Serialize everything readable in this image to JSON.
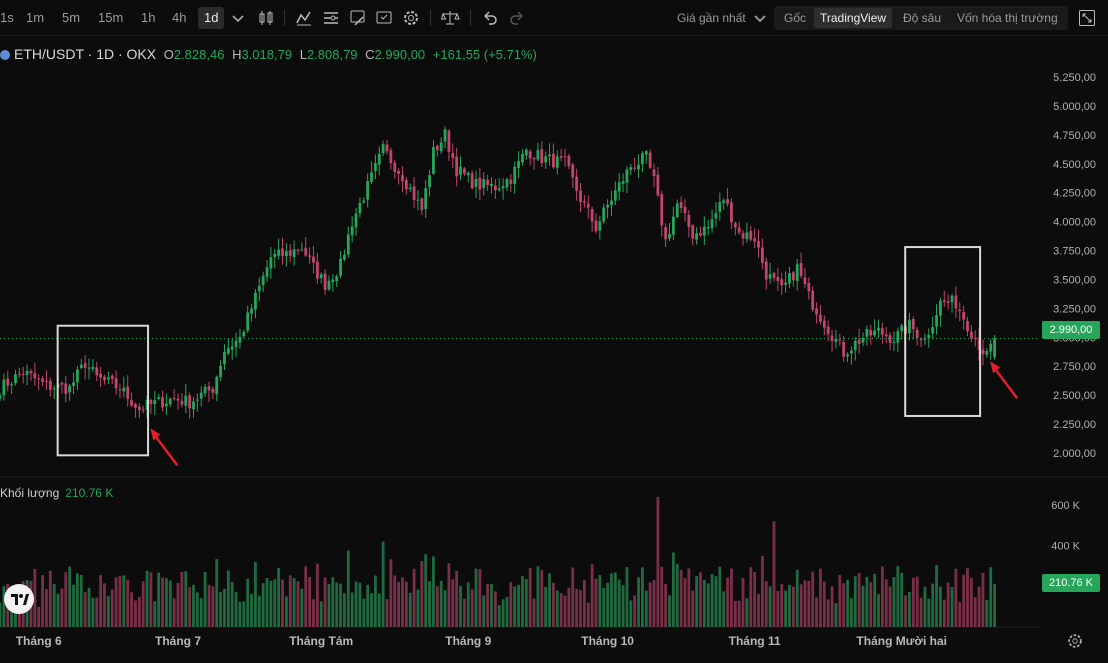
{
  "toolbar": {
    "intervals": [
      "1s",
      "1m",
      "5m",
      "15m",
      "1h",
      "4h",
      "1d"
    ],
    "active_interval": "1d",
    "price_source": "Giá gần nhất",
    "views": [
      "Gốc",
      "TradingView",
      "Độ sâu",
      "Vốn hóa thị trường"
    ],
    "active_view": "TradingView",
    "icons": [
      "chevron-down-icon",
      "candle-type-icon",
      "indicator-icon",
      "settings-list-icon",
      "drawing-icon",
      "template-icon",
      "gear-icon",
      "scale-icon",
      "undo-icon",
      "redo-icon",
      "fullscreen-icon"
    ]
  },
  "legend": {
    "symbol": "ETH/USDT · 1D · OKX",
    "o_label": "O",
    "o_value": "2.828,46",
    "h_label": "H",
    "h_value": "3.018,79",
    "l_label": "L",
    "l_value": "2.808,79",
    "c_label": "C",
    "c_value": "2.990,00",
    "change": "+161,55 (+5.71%)"
  },
  "volume_legend": {
    "label": "Khối lượng",
    "value": "210.76 K"
  },
  "current_price_label": "2.990,00",
  "current_volume_label": "210.76 K",
  "colors": {
    "up": "#26a65b",
    "down": "#c2456b",
    "background": "#0c0c0c",
    "grid": "#1f1f1f",
    "annotation_box": "#d9d9d9",
    "arrow": "#e0202a"
  },
  "chart_data": {
    "type": "candlestick",
    "price_axis_ticks": [
      "5.250,00",
      "5.000,00",
      "4.750,00",
      "4.500,00",
      "4.250,00",
      "4.000,00",
      "3.750,00",
      "3.500,00",
      "3.250,00",
      "3.000,00",
      "2.750,00",
      "2.500,00",
      "2.250,00",
      "2.000,00"
    ],
    "price_axis_values": [
      5250,
      5000,
      4750,
      4500,
      4250,
      4000,
      3750,
      3500,
      3250,
      3000,
      2750,
      2500,
      2250,
      2000
    ],
    "volume_axis_ticks": [
      "600 K",
      "400 K"
    ],
    "volume_axis_values": [
      600000,
      400000
    ],
    "x_tick_labels": [
      "Tháng 6",
      "Tháng 7",
      "Tháng Tám",
      "Tháng 9",
      "Tháng 10",
      "Tháng 11",
      "Tháng Mười hai"
    ],
    "price_keypoints": [
      [
        0,
        2560
      ],
      [
        6,
        2700
      ],
      [
        12,
        2580
      ],
      [
        18,
        2560
      ],
      [
        22,
        2780
      ],
      [
        25,
        2650
      ],
      [
        31,
        2560
      ],
      [
        36,
        2380
      ],
      [
        40,
        2430
      ],
      [
        45,
        2470
      ],
      [
        49,
        2440
      ],
      [
        55,
        2560
      ],
      [
        58,
        2890
      ],
      [
        62,
        2990
      ],
      [
        67,
        3430
      ],
      [
        70,
        3690
      ],
      [
        74,
        3720
      ],
      [
        78,
        3780
      ],
      [
        81,
        3600
      ],
      [
        84,
        3460
      ],
      [
        88,
        3620
      ],
      [
        91,
        4000
      ],
      [
        95,
        4300
      ],
      [
        99,
        4620
      ],
      [
        104,
        4400
      ],
      [
        109,
        4100
      ],
      [
        112,
        4600
      ],
      [
        115,
        4750
      ],
      [
        118,
        4450
      ],
      [
        123,
        4320
      ],
      [
        128,
        4300
      ],
      [
        132,
        4380
      ],
      [
        136,
        4620
      ],
      [
        140,
        4550
      ],
      [
        146,
        4500
      ],
      [
        150,
        4200
      ],
      [
        154,
        3950
      ],
      [
        158,
        4200
      ],
      [
        163,
        4480
      ],
      [
        167,
        4550
      ],
      [
        169,
        4350
      ],
      [
        172,
        3830
      ],
      [
        175,
        4150
      ],
      [
        179,
        3890
      ],
      [
        183,
        3950
      ],
      [
        187,
        4200
      ],
      [
        191,
        3900
      ],
      [
        195,
        3860
      ],
      [
        198,
        3550
      ],
      [
        202,
        3400
      ],
      [
        206,
        3600
      ],
      [
        209,
        3350
      ],
      [
        213,
        3130
      ],
      [
        218,
        2870
      ],
      [
        223,
        3000
      ],
      [
        227,
        3050
      ],
      [
        231,
        2990
      ],
      [
        235,
        3100
      ],
      [
        239,
        2980
      ],
      [
        243,
        3300
      ],
      [
        247,
        3300
      ],
      [
        251,
        3050
      ],
      [
        255,
        2830
      ],
      [
        257,
        2990
      ]
    ],
    "last_candle": {
      "open": 2828.46,
      "high": 3018.79,
      "low": 2808.79,
      "close": 2990.0
    },
    "annotations": [
      {
        "type": "box",
        "start_index": 18,
        "end_index": 38,
        "price_top": 3100,
        "price_bottom": 1980
      },
      {
        "type": "box",
        "start_index": 237,
        "end_index": 253,
        "price_top": 3780,
        "price_bottom": 2320
      },
      {
        "type": "arrow",
        "at_index": 36,
        "price": 2230
      },
      {
        "type": "arrow",
        "at_index": 253,
        "price": 2810
      }
    ]
  }
}
